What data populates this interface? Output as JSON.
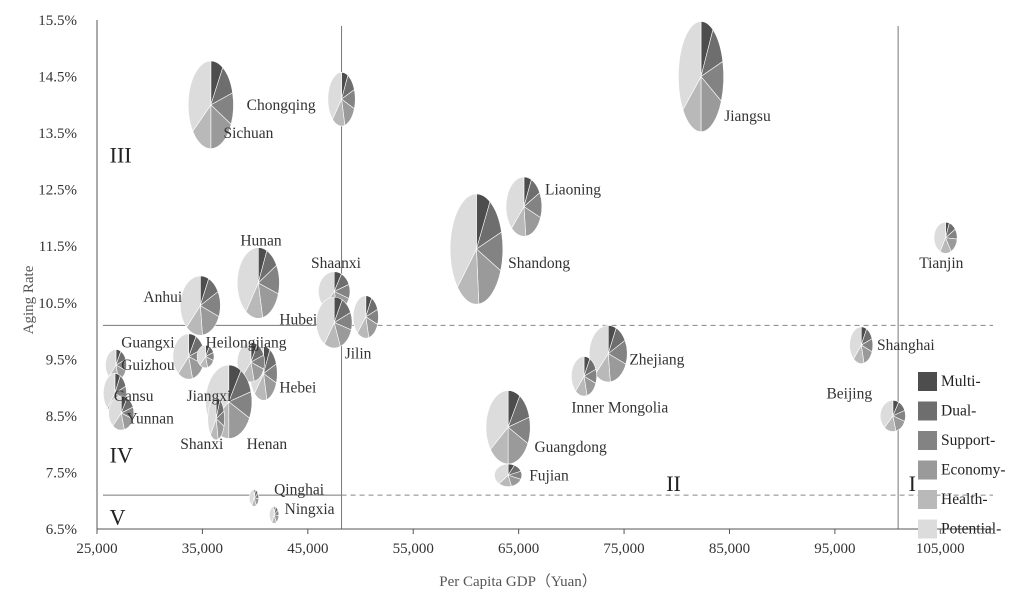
{
  "chart_data": {
    "type": "scatter",
    "xlabel": "Per Capita GDP（Yuan）",
    "ylabel": "Aging Rate",
    "xlim": [
      25000,
      110000
    ],
    "ylim": [
      6.5,
      15.5
    ],
    "x_ticks": [
      "25,000",
      "35,000",
      "45,000",
      "55,000",
      "65,000",
      "75,000",
      "85,000",
      "95,000",
      "105,000"
    ],
    "x_tick_values": [
      25000,
      35000,
      45000,
      55000,
      65000,
      75000,
      85000,
      95000,
      105000
    ],
    "y_ticks": [
      "6.5%",
      "7.5%",
      "8.5%",
      "9.5%",
      "10.5%",
      "11.5%",
      "12.5%",
      "13.5%",
      "14.5%",
      "15.5%"
    ],
    "y_tick_values": [
      6.5,
      7.5,
      8.5,
      9.5,
      10.5,
      11.5,
      12.5,
      13.5,
      14.5,
      15.5
    ],
    "legend": {
      "placement": "right",
      "entries": [
        {
          "name": "Multi-",
          "color": "#4d4d4d"
        },
        {
          "name": "Dual-",
          "color": "#6e6e6e"
        },
        {
          "name": "Support-",
          "color": "#838383"
        },
        {
          "name": "Economy-",
          "color": "#9a9a9a"
        },
        {
          "name": "Health-",
          "color": "#b9b9b9"
        },
        {
          "name": "Potential-",
          "color": "#dcdcdc"
        }
      ]
    },
    "reference_lines": {
      "vertical_gdp": [
        48200,
        101000
      ],
      "horizontal_aging": [
        10.1,
        7.1
      ]
    },
    "regions": [
      {
        "label": "I",
        "x": 102000,
        "y": 7.3
      },
      {
        "label": "II",
        "x": 79000,
        "y": 7.3
      },
      {
        "label": "III",
        "x": 26200,
        "y": 13.1
      },
      {
        "label": "IV",
        "x": 26200,
        "y": 7.8
      },
      {
        "label": "V",
        "x": 26200,
        "y": 6.7
      }
    ],
    "points": [
      {
        "name": "Chongqing",
        "x": 35800,
        "y": 14.0,
        "w": 4.3,
        "h": 1.55,
        "s": [
          3,
          4,
          4,
          6,
          5,
          12
        ],
        "label_x": 39200,
        "label_y": 14.0
      },
      {
        "name": "Sichuan",
        "x": 35800,
        "y": 14.0,
        "w": 0,
        "h": 0,
        "s": [],
        "label_x": 37000,
        "label_y": 13.5
      },
      {
        "name": "Hubei_bubble",
        "x": 48200,
        "y": 14.1,
        "w": 2.6,
        "h": 0.95,
        "s": [
          2,
          3,
          3,
          4,
          4,
          10
        ],
        "label_x": null,
        "label_y": null
      },
      {
        "name": "Jiangsu",
        "x": 82300,
        "y": 14.5,
        "w": 4.3,
        "h": 1.95,
        "s": [
          3,
          4,
          4,
          6,
          5,
          12
        ],
        "label_x": 84500,
        "label_y": 13.8
      },
      {
        "name": "Liaoning",
        "x": 65500,
        "y": 12.2,
        "w": 3.4,
        "h": 1.05,
        "s": [
          2,
          3,
          4,
          5,
          4,
          11
        ],
        "label_x": 67500,
        "label_y": 12.5
      },
      {
        "name": "Shandong",
        "x": 61000,
        "y": 11.45,
        "w": 5.0,
        "h": 1.95,
        "s": [
          3,
          4,
          4,
          6,
          5,
          13
        ],
        "label_x": 64000,
        "label_y": 11.2
      },
      {
        "name": "Tianjin",
        "x": 105500,
        "y": 11.65,
        "w": 2.2,
        "h": 0.55,
        "s": [
          1,
          2,
          2,
          3,
          3,
          8
        ],
        "label_x": 103000,
        "label_y": 11.2
      },
      {
        "name": "Hunan",
        "x": 40300,
        "y": 10.85,
        "w": 4.0,
        "h": 1.25,
        "s": [
          2,
          3,
          4,
          5,
          4,
          12
        ],
        "label_x": 38600,
        "label_y": 11.6
      },
      {
        "name": "Shaanxi",
        "x": 47500,
        "y": 10.7,
        "w": 3.0,
        "h": 0.7,
        "s": [
          2,
          3,
          3,
          4,
          4,
          10
        ],
        "label_x": 45300,
        "label_y": 11.2
      },
      {
        "name": "Hubei",
        "x": 47500,
        "y": 10.15,
        "w": 3.4,
        "h": 0.9,
        "s": [
          2,
          3,
          3,
          4,
          4,
          11
        ],
        "label_x": 42300,
        "label_y": 10.2
      },
      {
        "name": "Jilin",
        "x": 50500,
        "y": 10.25,
        "w": 2.4,
        "h": 0.75,
        "s": [
          2,
          3,
          3,
          4,
          4,
          10
        ],
        "label_x": 48500,
        "label_y": 9.6
      },
      {
        "name": "Anhui",
        "x": 34800,
        "y": 10.45,
        "w": 3.8,
        "h": 1.05,
        "s": [
          2,
          3,
          4,
          5,
          4,
          11
        ],
        "label_x": 29400,
        "label_y": 10.6
      },
      {
        "name": "Guangxi",
        "x": 33700,
        "y": 9.55,
        "w": 3.0,
        "h": 0.8,
        "s": [
          2,
          3,
          3,
          4,
          4,
          10
        ],
        "label_x": 27300,
        "label_y": 9.8
      },
      {
        "name": "Heilongjiang",
        "x": 35300,
        "y": 9.55,
        "w": 1.6,
        "h": 0.4,
        "s": [
          2,
          3,
          3,
          4,
          4,
          10
        ],
        "label_x": 35300,
        "label_y": 9.8
      },
      {
        "name": "Hebei",
        "x": 40800,
        "y": 9.25,
        "w": 2.6,
        "h": 0.95,
        "s": [
          2,
          3,
          3,
          4,
          4,
          10
        ],
        "label_x": 42300,
        "label_y": 9.0
      },
      {
        "name": "Jiangxi_bubble",
        "x": 39600,
        "y": 9.45,
        "w": 2.6,
        "h": 0.7,
        "s": [
          2,
          3,
          3,
          4,
          4,
          10
        ],
        "label_x": null,
        "label_y": null
      },
      {
        "name": "Guizhou",
        "x": 26800,
        "y": 9.4,
        "w": 2.0,
        "h": 0.55,
        "s": [
          2,
          3,
          3,
          4,
          4,
          10
        ],
        "label_x": 27300,
        "label_y": 9.4
      },
      {
        "name": "Gansu",
        "x": 26700,
        "y": 8.9,
        "w": 2.2,
        "h": 0.7,
        "s": [
          2,
          3,
          3,
          4,
          4,
          10
        ],
        "label_x": 26600,
        "label_y": 8.85
      },
      {
        "name": "Yunnan",
        "x": 27300,
        "y": 8.55,
        "w": 2.4,
        "h": 0.6,
        "s": [
          2,
          3,
          3,
          4,
          4,
          10
        ],
        "label_x": 27800,
        "label_y": 8.45
      },
      {
        "name": "Jiangxi",
        "x": 36000,
        "y": 8.85,
        "w": 1.0,
        "h": 0.3,
        "s": [
          2,
          3,
          3,
          4,
          4,
          10
        ],
        "label_x": 33500,
        "label_y": 8.85
      },
      {
        "name": "Henan",
        "x": 37500,
        "y": 8.75,
        "w": 4.4,
        "h": 1.3,
        "s": [
          3,
          4,
          4,
          6,
          5,
          12
        ],
        "label_x": 39200,
        "label_y": 8.0
      },
      {
        "name": "Shanxi",
        "x": 36300,
        "y": 8.45,
        "w": 1.6,
        "h": 0.75,
        "s": [
          2,
          3,
          3,
          4,
          4,
          10
        ],
        "label_x": 32900,
        "label_y": 8.0
      },
      {
        "name": "Zhejiang",
        "x": 73500,
        "y": 9.6,
        "w": 3.6,
        "h": 1.0,
        "s": [
          2,
          3,
          4,
          5,
          4,
          11
        ],
        "label_x": 75500,
        "label_y": 9.5
      },
      {
        "name": "Inner Mongolia",
        "x": 71200,
        "y": 9.2,
        "w": 2.4,
        "h": 0.7,
        "s": [
          2,
          3,
          3,
          4,
          4,
          10
        ],
        "label_x": 70000,
        "label_y": 8.65
      },
      {
        "name": "Guangdong",
        "x": 64000,
        "y": 8.3,
        "w": 4.2,
        "h": 1.3,
        "s": [
          3,
          4,
          4,
          6,
          5,
          12
        ],
        "label_x": 66500,
        "label_y": 7.95
      },
      {
        "name": "Fujian",
        "x": 64000,
        "y": 7.45,
        "w": 2.6,
        "h": 0.4,
        "s": [
          2,
          3,
          3,
          4,
          4,
          10
        ],
        "label_x": 66000,
        "label_y": 7.45
      },
      {
        "name": "Shanghai",
        "x": 97500,
        "y": 9.75,
        "w": 2.2,
        "h": 0.65,
        "s": [
          2,
          3,
          3,
          4,
          4,
          10
        ],
        "label_x": 99000,
        "label_y": 9.75
      },
      {
        "name": "Beijing",
        "x": 100500,
        "y": 8.5,
        "w": 2.4,
        "h": 0.55,
        "s": [
          2,
          3,
          3,
          4,
          4,
          10
        ],
        "label_x": 94200,
        "label_y": 8.9
      },
      {
        "name": "Qinghai",
        "x": 39900,
        "y": 7.05,
        "w": 0.9,
        "h": 0.3,
        "s": [
          1,
          2,
          2,
          3,
          3,
          8
        ],
        "label_x": 41800,
        "label_y": 7.2
      },
      {
        "name": "Ningxia",
        "x": 41800,
        "y": 6.75,
        "w": 0.9,
        "h": 0.3,
        "s": [
          1,
          2,
          2,
          3,
          3,
          8
        ],
        "label_x": 42800,
        "label_y": 6.85
      }
    ]
  }
}
